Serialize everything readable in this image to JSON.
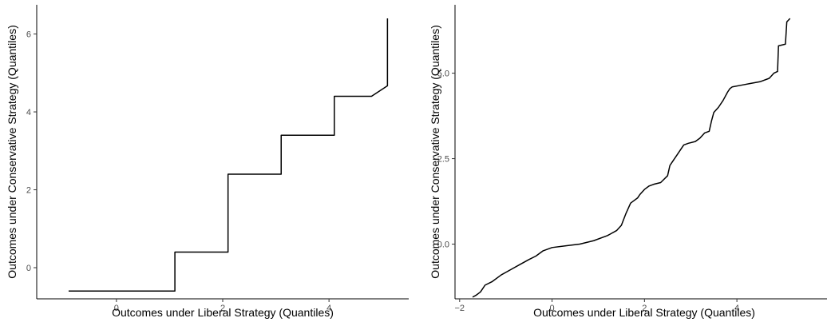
{
  "chart_data": [
    {
      "type": "line",
      "xlabel": "Outcomes under Liberal Strategy (Quantiles)",
      "ylabel": "Outcomes under Conservative Strategy (Quantiles)",
      "xlim": [
        -1.5,
        5.5
      ],
      "ylim": [
        -0.8,
        6.75
      ],
      "xticks": [
        0,
        2,
        4
      ],
      "yticks": [
        0,
        2,
        4,
        6
      ],
      "grid": false,
      "series": [
        {
          "color": "#000000",
          "x": [
            -0.9,
            1.1,
            1.1,
            2.1,
            2.1,
            3.1,
            3.1,
            4.1,
            4.1,
            4.8,
            5.1,
            5.1
          ],
          "y": [
            -0.6,
            -0.6,
            0.4,
            0.4,
            2.4,
            2.4,
            3.4,
            3.4,
            4.4,
            4.4,
            4.67,
            6.4
          ]
        }
      ]
    },
    {
      "type": "line",
      "xlabel": "Outcomes under Liberal Strategy (Quantiles)",
      "ylabel": "Outcomes under Conservative Strategy (Quantiles)",
      "xlim": [
        -2.1,
        5.95
      ],
      "ylim": [
        -1.6,
        7.0
      ],
      "xticks": [
        -2,
        0,
        2,
        4
      ],
      "xtick_labels": [
        "−2",
        "0",
        "2",
        "4"
      ],
      "yticks": [
        0,
        2.5,
        5
      ],
      "ytick_labels": [
        "0.0",
        "2.5",
        "5.0"
      ],
      "grid": false,
      "series": [
        {
          "color": "#000000",
          "x": [
            -1.72,
            -1.65,
            -1.55,
            -1.45,
            -1.3,
            -1.1,
            -0.9,
            -0.7,
            -0.5,
            -0.35,
            -0.2,
            0.0,
            0.3,
            0.6,
            0.9,
            1.2,
            1.4,
            1.5,
            1.6,
            1.7,
            1.75,
            1.85,
            1.9,
            2.0,
            2.1,
            2.2,
            2.35,
            2.5,
            2.55,
            2.6,
            2.7,
            2.8,
            2.85,
            2.95,
            3.1,
            3.2,
            3.3,
            3.4,
            3.45,
            3.5,
            3.6,
            3.7,
            3.8,
            3.85,
            3.9,
            4.1,
            4.3,
            4.5,
            4.7,
            4.8,
            4.88,
            4.9,
            5.05,
            5.08,
            5.15
          ],
          "y": [
            -1.55,
            -1.5,
            -1.4,
            -1.2,
            -1.1,
            -0.9,
            -0.75,
            -0.6,
            -0.45,
            -0.35,
            -0.2,
            -0.1,
            -0.05,
            0.0,
            0.1,
            0.25,
            0.4,
            0.55,
            0.9,
            1.2,
            1.25,
            1.35,
            1.45,
            1.6,
            1.7,
            1.75,
            1.8,
            2.0,
            2.3,
            2.4,
            2.6,
            2.8,
            2.9,
            2.95,
            3.0,
            3.1,
            3.25,
            3.3,
            3.6,
            3.85,
            4.0,
            4.2,
            4.45,
            4.55,
            4.6,
            4.65,
            4.7,
            4.75,
            4.85,
            5.0,
            5.05,
            5.8,
            5.85,
            6.5,
            6.6
          ]
        }
      ]
    }
  ]
}
